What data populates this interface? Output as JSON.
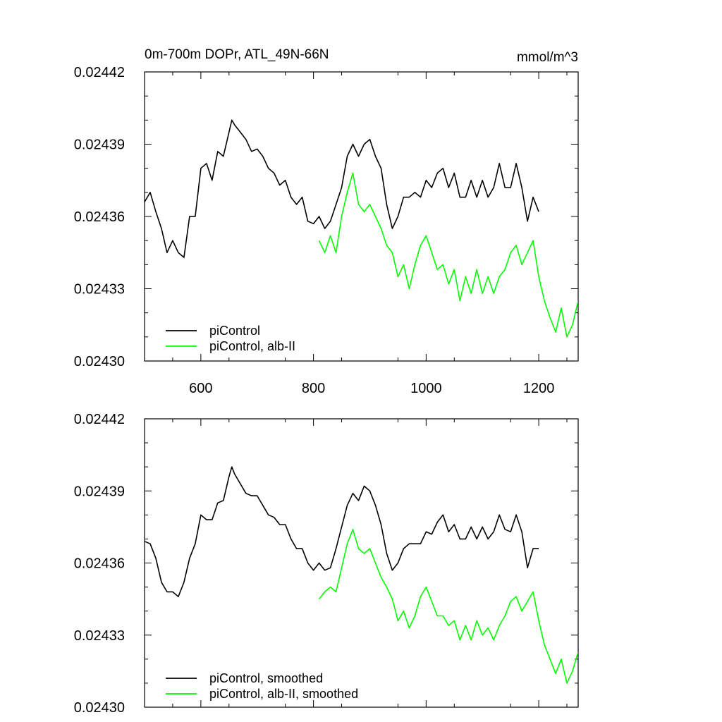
{
  "title_left": "0m-700m DOPr, ATL_49N-66N",
  "title_right": "mmol/m^3",
  "colors": {
    "black": "#000000",
    "green": "#00ff00"
  },
  "chart_data": [
    {
      "type": "line",
      "xlim": [
        500,
        1270
      ],
      "ylim": [
        0.0243,
        0.02442
      ],
      "x_ticks": [
        600,
        800,
        1000,
        1200
      ],
      "x_tick_labels": [
        "600",
        "800",
        "1000",
        "1200"
      ],
      "y_ticks": [
        0.0243,
        0.02433,
        0.02436,
        0.02439,
        0.02442
      ],
      "y_tick_labels": [
        "0.02430",
        "0.02433",
        "0.02436",
        "0.02439",
        "0.02442"
      ],
      "legend_position": "bottom-left",
      "series": [
        {
          "name": "piControl",
          "color": "#000000",
          "x": [
            500,
            510,
            520,
            530,
            540,
            550,
            560,
            570,
            580,
            590,
            600,
            610,
            620,
            630,
            640,
            650,
            655,
            660,
            670,
            680,
            690,
            700,
            710,
            720,
            730,
            740,
            750,
            760,
            770,
            780,
            790,
            800,
            810,
            820,
            830,
            840,
            850,
            860,
            870,
            880,
            890,
            900,
            910,
            920,
            930,
            940,
            950,
            960,
            970,
            980,
            990,
            1000,
            1010,
            1020,
            1030,
            1040,
            1050,
            1060,
            1070,
            1080,
            1090,
            1100,
            1110,
            1120,
            1130,
            1140,
            1150,
            1160,
            1170,
            1180,
            1190,
            1200
          ],
          "y": [
            0.024366,
            0.02437,
            0.024362,
            0.024355,
            0.024345,
            0.02435,
            0.024345,
            0.024343,
            0.02436,
            0.02436,
            0.02438,
            0.024382,
            0.024375,
            0.024387,
            0.024385,
            0.024395,
            0.0244,
            0.024398,
            0.024395,
            0.024392,
            0.024387,
            0.024388,
            0.024385,
            0.02438,
            0.024378,
            0.024373,
            0.024375,
            0.024368,
            0.024365,
            0.024368,
            0.024358,
            0.024357,
            0.02436,
            0.024355,
            0.024358,
            0.024365,
            0.024372,
            0.024385,
            0.02439,
            0.024385,
            0.02439,
            0.024392,
            0.024385,
            0.02438,
            0.024365,
            0.024355,
            0.02436,
            0.024368,
            0.024368,
            0.02437,
            0.024368,
            0.024375,
            0.024372,
            0.024378,
            0.02438,
            0.024372,
            0.024378,
            0.024368,
            0.024368,
            0.024375,
            0.024368,
            0.024375,
            0.024368,
            0.024372,
            0.024382,
            0.024372,
            0.024372,
            0.024382,
            0.024372,
            0.024358,
            0.024368,
            0.024362
          ]
        },
        {
          "name": "piControl, alb-II",
          "color": "#00ff00",
          "x": [
            810,
            820,
            830,
            840,
            850,
            860,
            870,
            880,
            890,
            900,
            910,
            920,
            930,
            940,
            950,
            960,
            970,
            980,
            990,
            1000,
            1010,
            1020,
            1030,
            1040,
            1050,
            1060,
            1070,
            1080,
            1090,
            1100,
            1110,
            1120,
            1130,
            1140,
            1150,
            1160,
            1170,
            1180,
            1190,
            1200,
            1210,
            1220,
            1230,
            1240,
            1250,
            1260,
            1270
          ],
          "y": [
            0.02435,
            0.024345,
            0.024352,
            0.024345,
            0.02436,
            0.02437,
            0.024378,
            0.024365,
            0.024362,
            0.024365,
            0.02436,
            0.024355,
            0.024348,
            0.024345,
            0.024335,
            0.02434,
            0.02433,
            0.02434,
            0.024348,
            0.024352,
            0.024345,
            0.024338,
            0.02434,
            0.024332,
            0.024338,
            0.024325,
            0.024335,
            0.024328,
            0.024338,
            0.024328,
            0.024335,
            0.024328,
            0.024335,
            0.024338,
            0.024345,
            0.024348,
            0.02434,
            0.024345,
            0.02435,
            0.024335,
            0.024325,
            0.024318,
            0.024312,
            0.024322,
            0.02431,
            0.024315,
            0.024325
          ]
        }
      ]
    },
    {
      "type": "line",
      "xlim": [
        500,
        1270
      ],
      "ylim": [
        0.0243,
        0.02442
      ],
      "x_ticks": [
        600,
        800,
        1000,
        1200
      ],
      "y_ticks": [
        0.0243,
        0.02433,
        0.02436,
        0.02439,
        0.02442
      ],
      "y_tick_labels": [
        "0.02430",
        "0.02433",
        "0.02436",
        "0.02439",
        "0.02442"
      ],
      "legend_position": "bottom-left",
      "series": [
        {
          "name": "piControl, smoothed",
          "color": "#000000",
          "x": [
            500,
            510,
            520,
            530,
            540,
            550,
            560,
            570,
            580,
            590,
            600,
            610,
            620,
            630,
            640,
            650,
            655,
            660,
            670,
            680,
            690,
            700,
            710,
            720,
            730,
            740,
            750,
            760,
            770,
            780,
            790,
            800,
            810,
            820,
            830,
            840,
            850,
            860,
            870,
            880,
            890,
            900,
            910,
            920,
            930,
            940,
            950,
            960,
            970,
            980,
            990,
            1000,
            1010,
            1020,
            1030,
            1040,
            1050,
            1060,
            1070,
            1080,
            1090,
            1100,
            1110,
            1120,
            1130,
            1140,
            1150,
            1160,
            1170,
            1180,
            1190,
            1200
          ],
          "y": [
            0.024369,
            0.024368,
            0.024362,
            0.024352,
            0.024348,
            0.024348,
            0.024346,
            0.024352,
            0.024362,
            0.024368,
            0.02438,
            0.024378,
            0.024378,
            0.024385,
            0.024386,
            0.024396,
            0.0244,
            0.024397,
            0.024393,
            0.024389,
            0.024388,
            0.024388,
            0.024384,
            0.02438,
            0.024379,
            0.024376,
            0.024376,
            0.02437,
            0.024366,
            0.024366,
            0.02436,
            0.024357,
            0.02436,
            0.024357,
            0.024358,
            0.024366,
            0.024375,
            0.024384,
            0.024389,
            0.024386,
            0.024392,
            0.02439,
            0.024384,
            0.024376,
            0.024364,
            0.024357,
            0.02436,
            0.024366,
            0.024368,
            0.024368,
            0.024368,
            0.024373,
            0.024372,
            0.024377,
            0.02438,
            0.024373,
            0.024376,
            0.02437,
            0.02437,
            0.024375,
            0.02437,
            0.024375,
            0.02437,
            0.024373,
            0.02438,
            0.024374,
            0.024373,
            0.02438,
            0.024373,
            0.024358,
            0.024366,
            0.024366
          ]
        },
        {
          "name": "piControl, alb-II, smoothed",
          "color": "#00ff00",
          "x": [
            810,
            820,
            830,
            840,
            850,
            860,
            870,
            880,
            890,
            900,
            910,
            920,
            930,
            940,
            950,
            960,
            970,
            980,
            990,
            1000,
            1010,
            1020,
            1030,
            1040,
            1050,
            1060,
            1070,
            1080,
            1090,
            1100,
            1110,
            1120,
            1130,
            1140,
            1150,
            1160,
            1170,
            1180,
            1190,
            1200,
            1210,
            1220,
            1230,
            1240,
            1250,
            1260,
            1270
          ],
          "y": [
            0.024345,
            0.024348,
            0.02435,
            0.024348,
            0.024358,
            0.024368,
            0.024374,
            0.024366,
            0.024364,
            0.024366,
            0.02436,
            0.024354,
            0.02435,
            0.024345,
            0.024336,
            0.02434,
            0.024333,
            0.024338,
            0.024346,
            0.02435,
            0.024344,
            0.024338,
            0.024338,
            0.024334,
            0.024336,
            0.024328,
            0.024334,
            0.024328,
            0.024336,
            0.02433,
            0.024333,
            0.024328,
            0.024334,
            0.024338,
            0.024344,
            0.024346,
            0.02434,
            0.024344,
            0.024348,
            0.024336,
            0.024326,
            0.02432,
            0.024314,
            0.02432,
            0.02431,
            0.024315,
            0.024323
          ]
        }
      ]
    }
  ]
}
